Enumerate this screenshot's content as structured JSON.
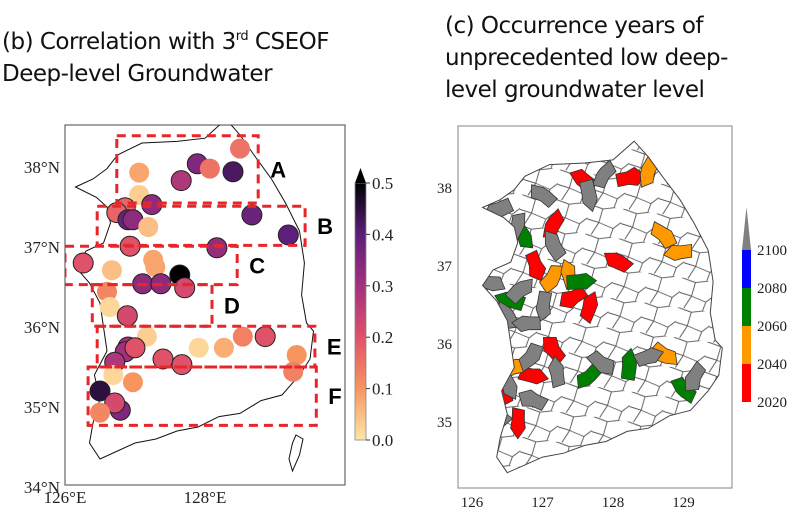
{
  "panel_b": {
    "title_part1": "(b) Correlation with 3",
    "title_sup": "rd",
    "title_part2": " CSEOF",
    "title_line2": "Deep-level Groundwater",
    "lat_ticks": [
      "34°N",
      "35°N",
      "36°N",
      "37°N",
      "38°N"
    ],
    "lon_ticks": [
      "126°E",
      "128°E"
    ],
    "colorbar": {
      "ticks": [
        "0.0",
        "0.1",
        "0.2",
        "0.3",
        "0.4",
        "0.5"
      ],
      "range": [
        0.0,
        0.5
      ],
      "extend": "max",
      "colormap": "magma (reversed)",
      "colors": [
        "#fde7a8",
        "#f8955f",
        "#e0516a",
        "#a3307e",
        "#5c1f7a",
        "#000004"
      ]
    },
    "boxes": [
      {
        "label": "A",
        "lon": [
          126.74,
          128.76
        ],
        "lat": [
          37.55,
          38.39
        ]
      },
      {
        "label": "B",
        "lon": [
          126.46,
          129.43
        ],
        "lat": [
          37.02,
          37.51
        ]
      },
      {
        "label": "C",
        "lon": [
          126.0,
          128.46
        ],
        "lat": [
          36.53,
          37.01
        ]
      },
      {
        "label": "D",
        "lon": [
          126.39,
          128.1
        ],
        "lat": [
          36.01,
          36.53
        ]
      },
      {
        "label": "E",
        "lon": [
          126.46,
          129.57
        ],
        "lat": [
          35.5,
          36.01
        ]
      },
      {
        "label": "F",
        "lon": [
          126.33,
          129.59
        ],
        "lat": [
          34.77,
          35.5
        ]
      }
    ],
    "box_color": "#e8262a",
    "stations": [
      {
        "lon": 128.5,
        "lat": 38.23,
        "r": 0.15
      },
      {
        "lon": 127.89,
        "lat": 38.04,
        "r": 0.35
      },
      {
        "lon": 128.07,
        "lat": 37.98,
        "r": 0.15
      },
      {
        "lon": 128.4,
        "lat": 37.94,
        "r": 0.42
      },
      {
        "lon": 127.66,
        "lat": 37.83,
        "r": 0.28
      },
      {
        "lon": 127.06,
        "lat": 37.93,
        "r": 0.08
      },
      {
        "lon": 127.06,
        "lat": 37.65,
        "r": 0.03
      },
      {
        "lon": 127.24,
        "lat": 37.53,
        "r": 0.33
      },
      {
        "lon": 126.86,
        "lat": 37.49,
        "r": 0.17
      },
      {
        "lon": 126.74,
        "lat": 37.43,
        "r": 0.17
      },
      {
        "lon": 126.9,
        "lat": 37.34,
        "r": 0.38
      },
      {
        "lon": 126.97,
        "lat": 37.34,
        "r": 0.33
      },
      {
        "lon": 127.19,
        "lat": 37.25,
        "r": 0.05
      },
      {
        "lon": 128.67,
        "lat": 37.4,
        "r": 0.38
      },
      {
        "lon": 129.19,
        "lat": 37.15,
        "r": 0.4
      },
      {
        "lon": 126.93,
        "lat": 37.01,
        "r": 0.2
      },
      {
        "lon": 128.17,
        "lat": 36.99,
        "r": 0.32
      },
      {
        "lon": 126.26,
        "lat": 36.8,
        "r": 0.2
      },
      {
        "lon": 127.26,
        "lat": 36.84,
        "r": 0.08
      },
      {
        "lon": 127.29,
        "lat": 36.75,
        "r": 0.08
      },
      {
        "lon": 126.67,
        "lat": 36.71,
        "r": 0.05
      },
      {
        "lon": 127.64,
        "lat": 36.65,
        "r": 0.5
      },
      {
        "lon": 127.11,
        "lat": 36.54,
        "r": 0.33
      },
      {
        "lon": 127.37,
        "lat": 36.54,
        "r": 0.33
      },
      {
        "lon": 127.71,
        "lat": 36.49,
        "r": 0.22
      },
      {
        "lon": 126.6,
        "lat": 36.44,
        "r": 0.12
      },
      {
        "lon": 126.64,
        "lat": 36.25,
        "r": 0.02
      },
      {
        "lon": 126.89,
        "lat": 36.14,
        "r": 0.22
      },
      {
        "lon": 127.17,
        "lat": 35.88,
        "r": 0.03
      },
      {
        "lon": 128.54,
        "lat": 35.88,
        "r": 0.13
      },
      {
        "lon": 128.86,
        "lat": 35.88,
        "r": 0.2
      },
      {
        "lon": 126.9,
        "lat": 35.75,
        "r": 0.3
      },
      {
        "lon": 126.86,
        "lat": 35.69,
        "r": 0.3
      },
      {
        "lon": 127.0,
        "lat": 35.74,
        "r": 0.2
      },
      {
        "lon": 127.91,
        "lat": 35.74,
        "r": 0.02
      },
      {
        "lon": 128.27,
        "lat": 35.74,
        "r": 0.07
      },
      {
        "lon": 126.71,
        "lat": 35.56,
        "r": 0.28
      },
      {
        "lon": 127.4,
        "lat": 35.6,
        "r": 0.2
      },
      {
        "lon": 127.67,
        "lat": 35.53,
        "r": 0.2
      },
      {
        "lon": 129.31,
        "lat": 35.65,
        "r": 0.1
      },
      {
        "lon": 129.26,
        "lat": 35.44,
        "r": 0.13
      },
      {
        "lon": 126.69,
        "lat": 35.4,
        "r": 0.02
      },
      {
        "lon": 126.97,
        "lat": 35.31,
        "r": 0.1
      },
      {
        "lon": 126.5,
        "lat": 35.2,
        "r": 0.45
      },
      {
        "lon": 126.79,
        "lat": 34.96,
        "r": 0.35
      },
      {
        "lon": 126.71,
        "lat": 35.05,
        "r": 0.22
      },
      {
        "lon": 126.5,
        "lat": 34.93,
        "r": 0.12
      }
    ]
  },
  "panel_c": {
    "title_line1": "(c) Occurrence years of",
    "title_line2": "unprecedented low deep-",
    "title_line3": "level groundwater level",
    "lat_ticks": [
      "35",
      "36",
      "37",
      "38"
    ],
    "lon_ticks": [
      "126",
      "127",
      "128",
      "129"
    ],
    "colorbar": {
      "ticks": [
        "2020",
        "2040",
        "2060",
        "2080",
        "2100"
      ],
      "extend": "max",
      "colors": [
        "#ff0000",
        "#ff9900",
        "#008000",
        "#0000ff",
        "#808080"
      ]
    },
    "regions": [
      {
        "lon": 127.59,
        "lat": 38.1,
        "year_class": "2020"
      },
      {
        "lon": 128.23,
        "lat": 38.13,
        "year_class": "2020"
      },
      {
        "lon": 127.16,
        "lat": 37.53,
        "year_class": "2020"
      },
      {
        "lon": 126.9,
        "lat": 37.01,
        "year_class": "2020"
      },
      {
        "lon": 128.07,
        "lat": 37.05,
        "year_class": "2020"
      },
      {
        "lon": 127.44,
        "lat": 36.6,
        "year_class": "2020"
      },
      {
        "lon": 127.66,
        "lat": 36.47,
        "year_class": "2020"
      },
      {
        "lon": 127.16,
        "lat": 35.92,
        "year_class": "2020"
      },
      {
        "lon": 126.86,
        "lat": 35.6,
        "year_class": "2020"
      },
      {
        "lon": 126.4,
        "lat": 35.28,
        "year_class": "2020"
      },
      {
        "lon": 126.66,
        "lat": 35.0,
        "year_class": "2020"
      },
      {
        "lon": 128.71,
        "lat": 37.4,
        "year_class": "2040"
      },
      {
        "lon": 128.94,
        "lat": 37.17,
        "year_class": "2040"
      },
      {
        "lon": 127.14,
        "lat": 36.85,
        "year_class": "2040"
      },
      {
        "lon": 127.37,
        "lat": 36.88,
        "year_class": "2040"
      },
      {
        "lon": 128.73,
        "lat": 35.86,
        "year_class": "2040"
      },
      {
        "lon": 126.59,
        "lat": 35.7,
        "year_class": "2040"
      },
      {
        "lon": 128.5,
        "lat": 38.2,
        "year_class": "2040"
      },
      {
        "lon": 126.73,
        "lat": 37.4,
        "year_class": "2060"
      },
      {
        "lon": 126.54,
        "lat": 36.56,
        "year_class": "2060"
      },
      {
        "lon": 127.66,
        "lat": 35.58,
        "year_class": "2060"
      },
      {
        "lon": 128.23,
        "lat": 35.73,
        "year_class": "2060"
      },
      {
        "lon": 129.0,
        "lat": 35.41,
        "year_class": "2060"
      },
      {
        "lon": 127.54,
        "lat": 36.8,
        "year_class": "2060"
      },
      {
        "lon": 127.87,
        "lat": 38.17,
        "year_class": "2100"
      },
      {
        "lon": 127.66,
        "lat": 37.91,
        "year_class": "2100"
      },
      {
        "lon": 127.01,
        "lat": 37.91,
        "year_class": "2100"
      },
      {
        "lon": 126.37,
        "lat": 37.72,
        "year_class": "2100"
      },
      {
        "lon": 126.64,
        "lat": 37.5,
        "year_class": "2100"
      },
      {
        "lon": 127.16,
        "lat": 37.27,
        "year_class": "2100"
      },
      {
        "lon": 126.26,
        "lat": 36.78,
        "year_class": "2100"
      },
      {
        "lon": 126.69,
        "lat": 36.69,
        "year_class": "2100"
      },
      {
        "lon": 127.01,
        "lat": 36.5,
        "year_class": "2100"
      },
      {
        "lon": 126.5,
        "lat": 36.35,
        "year_class": "2100"
      },
      {
        "lon": 126.79,
        "lat": 36.27,
        "year_class": "2100"
      },
      {
        "lon": 126.83,
        "lat": 35.83,
        "year_class": "2100"
      },
      {
        "lon": 127.21,
        "lat": 35.63,
        "year_class": "2100"
      },
      {
        "lon": 127.83,
        "lat": 35.76,
        "year_class": "2100"
      },
      {
        "lon": 128.5,
        "lat": 35.83,
        "year_class": "2100"
      },
      {
        "lon": 129.16,
        "lat": 35.58,
        "year_class": "2100"
      },
      {
        "lon": 126.51,
        "lat": 35.48,
        "year_class": "2100"
      },
      {
        "lon": 126.87,
        "lat": 35.28,
        "year_class": "2100"
      },
      {
        "lon": 126.36,
        "lat": 35.0,
        "year_class": "2100"
      }
    ]
  }
}
